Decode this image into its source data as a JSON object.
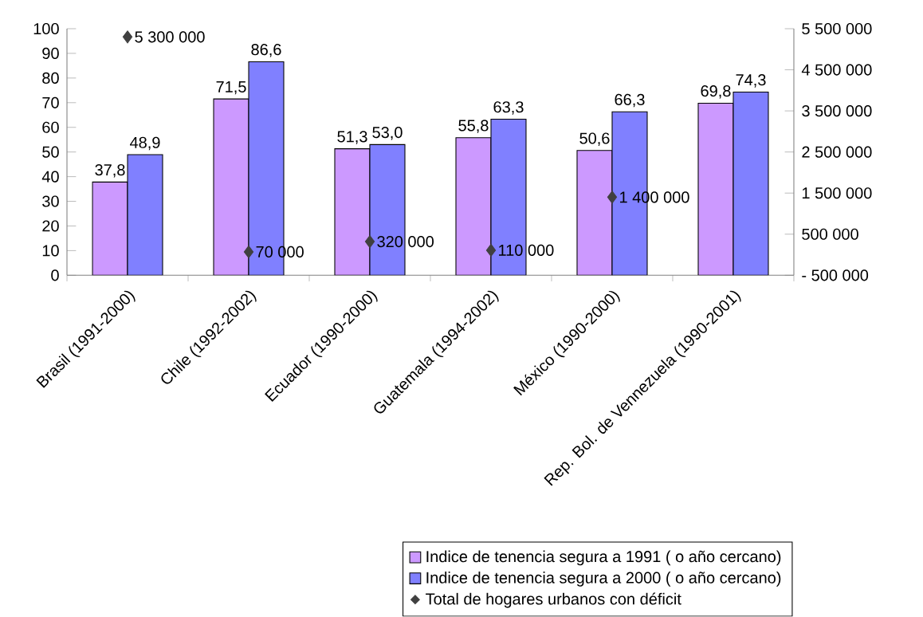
{
  "chart_data": {
    "type": "bar",
    "categories": [
      "Brasil (1991-2000)",
      "Chile (1992-2002)",
      "Ecuador (1990-2000)",
      "Guatemala (1994-2002)",
      "México (1990-2000)",
      "Rep. Bol. de Vennezuela (1990-2001)"
    ],
    "series": [
      {
        "name": "Indice de tenencia segura a 1991 ( o año cercano)",
        "color": "#cc99ff",
        "values": [
          37.8,
          71.5,
          51.3,
          55.8,
          50.6,
          69.8
        ],
        "value_labels": [
          "37,8",
          "71,5",
          "51,3",
          "55,8",
          "50,6",
          "69,8"
        ]
      },
      {
        "name": "Indice de tenencia segura a 2000 ( o año cercano)",
        "color": "#8080ff",
        "values": [
          48.9,
          86.6,
          53.0,
          63.3,
          66.3,
          74.3
        ],
        "value_labels": [
          "48,9",
          "86,6",
          "53,0",
          "63,3",
          "66,3",
          "74,3"
        ]
      },
      {
        "name": "Total de hogares urbanos con déficit",
        "type": "scatter",
        "axis": "y2",
        "marker": "diamond",
        "color": "#404040",
        "values": [
          5300000,
          70000,
          320000,
          110000,
          1400000,
          null
        ],
        "value_labels": [
          "5 300 000",
          "70 000",
          "320 000",
          "110 000",
          "1 400 000",
          null
        ]
      }
    ],
    "ylim": [
      0,
      100
    ],
    "yticks": [
      0,
      10,
      20,
      30,
      40,
      50,
      60,
      70,
      80,
      90,
      100
    ],
    "y2lim": [
      -500000,
      5500000
    ],
    "y2ticks": [
      {
        "value": -500000,
        "label": "- 500 000"
      },
      {
        "value": 500000,
        "label": "500 000"
      },
      {
        "value": 1500000,
        "label": "1 500 000"
      },
      {
        "value": 2500000,
        "label": "2 500 000"
      },
      {
        "value": 3500000,
        "label": "3 500 000"
      },
      {
        "value": 4500000,
        "label": "4 500 000"
      },
      {
        "value": 5500000,
        "label": "5 500 000"
      }
    ],
    "legend": "bottom"
  }
}
